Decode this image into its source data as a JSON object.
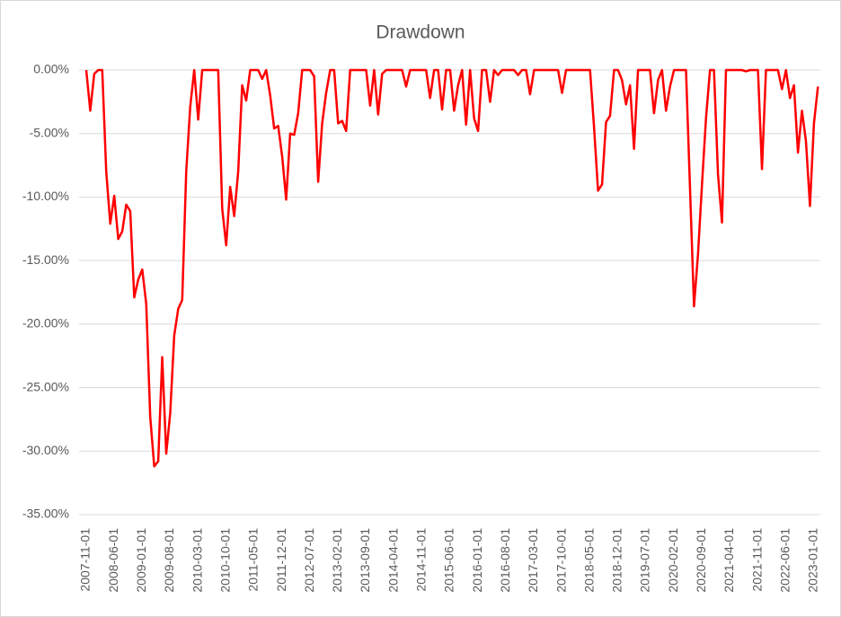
{
  "chart_data": {
    "type": "line",
    "title": "Drawdown",
    "categories": [
      "2007-11-01",
      null,
      null,
      null,
      null,
      null,
      null,
      "2008-06-01",
      null,
      null,
      null,
      null,
      null,
      null,
      "2009-01-01",
      null,
      null,
      null,
      null,
      null,
      null,
      "2009-08-01",
      null,
      null,
      null,
      null,
      null,
      null,
      "2010-03-01",
      null,
      null,
      null,
      null,
      null,
      null,
      "2010-10-01",
      null,
      null,
      null,
      null,
      null,
      null,
      "2011-05-01",
      null,
      null,
      null,
      null,
      null,
      null,
      "2011-12-01",
      null,
      null,
      null,
      null,
      null,
      null,
      "2012-07-01",
      null,
      null,
      null,
      null,
      null,
      null,
      "2013-02-01",
      null,
      null,
      null,
      null,
      null,
      null,
      "2013-09-01",
      null,
      null,
      null,
      null,
      null,
      null,
      "2014-04-01",
      null,
      null,
      null,
      null,
      null,
      null,
      "2014-11-01",
      null,
      null,
      null,
      null,
      null,
      null,
      "2015-06-01",
      null,
      null,
      null,
      null,
      null,
      null,
      "2016-01-01",
      null,
      null,
      null,
      null,
      null,
      null,
      "2016-08-01",
      null,
      null,
      null,
      null,
      null,
      null,
      "2017-03-01",
      null,
      null,
      null,
      null,
      null,
      null,
      "2017-10-01",
      null,
      null,
      null,
      null,
      null,
      null,
      "2018-05-01",
      null,
      null,
      null,
      null,
      null,
      null,
      "2018-12-01",
      null,
      null,
      null,
      null,
      null,
      null,
      "2019-07-01",
      null,
      null,
      null,
      null,
      null,
      null,
      "2020-02-01",
      null,
      null,
      null,
      null,
      null,
      null,
      "2020-09-01",
      null,
      null,
      null,
      null,
      null,
      null,
      "2021-04-01",
      null,
      null,
      null,
      null,
      null,
      null,
      "2021-11-01",
      null,
      null,
      null,
      null,
      null,
      null,
      "2022-06-01",
      null,
      null,
      null,
      null,
      null,
      null,
      "2023-01-01",
      null
    ],
    "series": [
      {
        "color": "#ff0000",
        "values": [
          0,
          -3.2,
          -0.3,
          0,
          0,
          -8,
          -12.1,
          -9.9,
          -13.3,
          -12.7,
          -10.6,
          -11.1,
          -17.9,
          -16.5,
          -15.7,
          -18.4,
          -27.3,
          -31.2,
          -30.8,
          -22.6,
          -30.2,
          -27,
          -20.9,
          -18.8,
          -18.1,
          -8,
          -2.9,
          0,
          -3.9,
          0,
          0,
          0,
          0,
          0,
          -10.9,
          -13.8,
          -9.2,
          -11.5,
          -8,
          -1.2,
          -2.4,
          0,
          0,
          0,
          -0.7,
          0,
          -2,
          -4.6,
          -4.4,
          -6.8,
          -10.2,
          -5,
          -5.1,
          -3.4,
          0,
          0,
          0,
          -0.5,
          -8.8,
          -4.2,
          -1.8,
          0,
          0,
          -4.2,
          -4,
          -4.8,
          0,
          0,
          0,
          0,
          0,
          -2.8,
          0,
          -3.5,
          -0.3,
          0,
          0,
          0,
          0,
          0,
          -1.3,
          0,
          0,
          0,
          0,
          0,
          -2.2,
          0,
          0,
          -3.1,
          0,
          0,
          -3.2,
          -1.2,
          0,
          -4.3,
          0,
          -3.8,
          -4.8,
          0,
          0,
          -2.5,
          0,
          -0.4,
          0,
          0,
          0,
          0,
          -0.4,
          0,
          0,
          -1.9,
          0,
          0,
          0,
          0,
          0,
          0,
          0,
          -1.8,
          0,
          0,
          0,
          0,
          0,
          0,
          0,
          -4.5,
          -9.5,
          -9,
          -4.1,
          -3.6,
          0,
          0,
          -0.8,
          -2.7,
          -1.2,
          -6.2,
          0,
          0,
          0,
          0,
          -3.4,
          -0.8,
          0,
          -3.2,
          -1.3,
          0,
          0,
          0,
          0,
          -9.3,
          -18.6,
          -14.5,
          -9,
          -3.8,
          0,
          0,
          -8.2,
          -12,
          0,
          0,
          0,
          0,
          0,
          -0.1,
          0,
          0,
          0,
          -7.8,
          0,
          0,
          0,
          0,
          -1.5,
          0,
          -2.2,
          -1.2,
          -6.5,
          -3.2,
          -5.6,
          -10.7,
          -4.2,
          -1.3
        ]
      }
    ],
    "ylim": [
      -35,
      0
    ],
    "yticks": [
      {
        "value": -35,
        "label": "-35.00%"
      },
      {
        "value": -30,
        "label": "-30.00%"
      },
      {
        "value": -25,
        "label": "-25.00%"
      },
      {
        "value": -20,
        "label": "-20.00%"
      },
      {
        "value": -15,
        "label": "-15.00%"
      },
      {
        "value": -10,
        "label": "-10.00%"
      },
      {
        "value": -5,
        "label": "-5.00%"
      },
      {
        "value": 0,
        "label": "0.00%"
      }
    ],
    "grid": true
  }
}
